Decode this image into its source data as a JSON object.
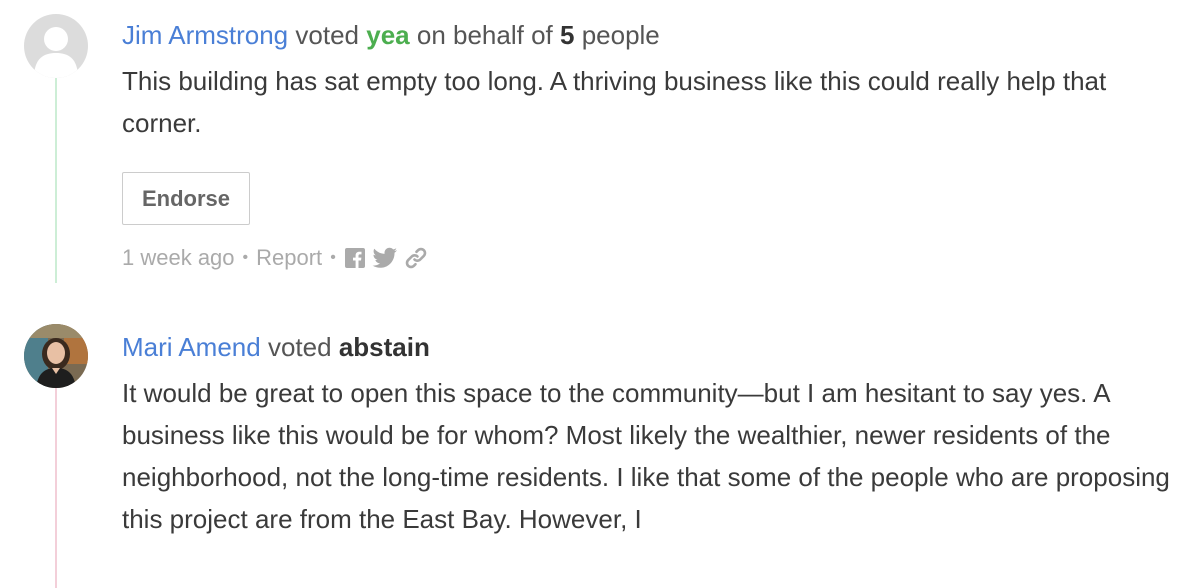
{
  "comments": [
    {
      "author": "Jim Armstrong",
      "verb": "voted",
      "vote": "yea",
      "behalf_prefix": "on behalf of",
      "behalf_count": "5",
      "behalf_suffix": "people",
      "text": "This building has sat empty too long. A thriving business like this could really help that corner.",
      "endorse_label": "Endorse",
      "time": "1 week ago",
      "report_label": "Report",
      "colors": {
        "vote": "#4cae4f",
        "thread": "#cdeed6"
      }
    },
    {
      "author": "Mari Amend",
      "verb": "voted",
      "vote": "abstain",
      "text": "It would be great to open this space to the community—but I am hesitant to say yes. A business like this would be for whom? Most likely the wealthier, newer residents of the neighborhood, not the long-time residents. I like that some of the people who are proposing this project are from the East Bay. However, I",
      "colors": {
        "vote": "#333333",
        "thread": "#f3cfd9"
      }
    }
  ],
  "icons": [
    "facebook-icon",
    "twitter-icon",
    "link-icon"
  ],
  "colors": {
    "name": "#4a7fd6",
    "meta": "#aaaaaa"
  }
}
